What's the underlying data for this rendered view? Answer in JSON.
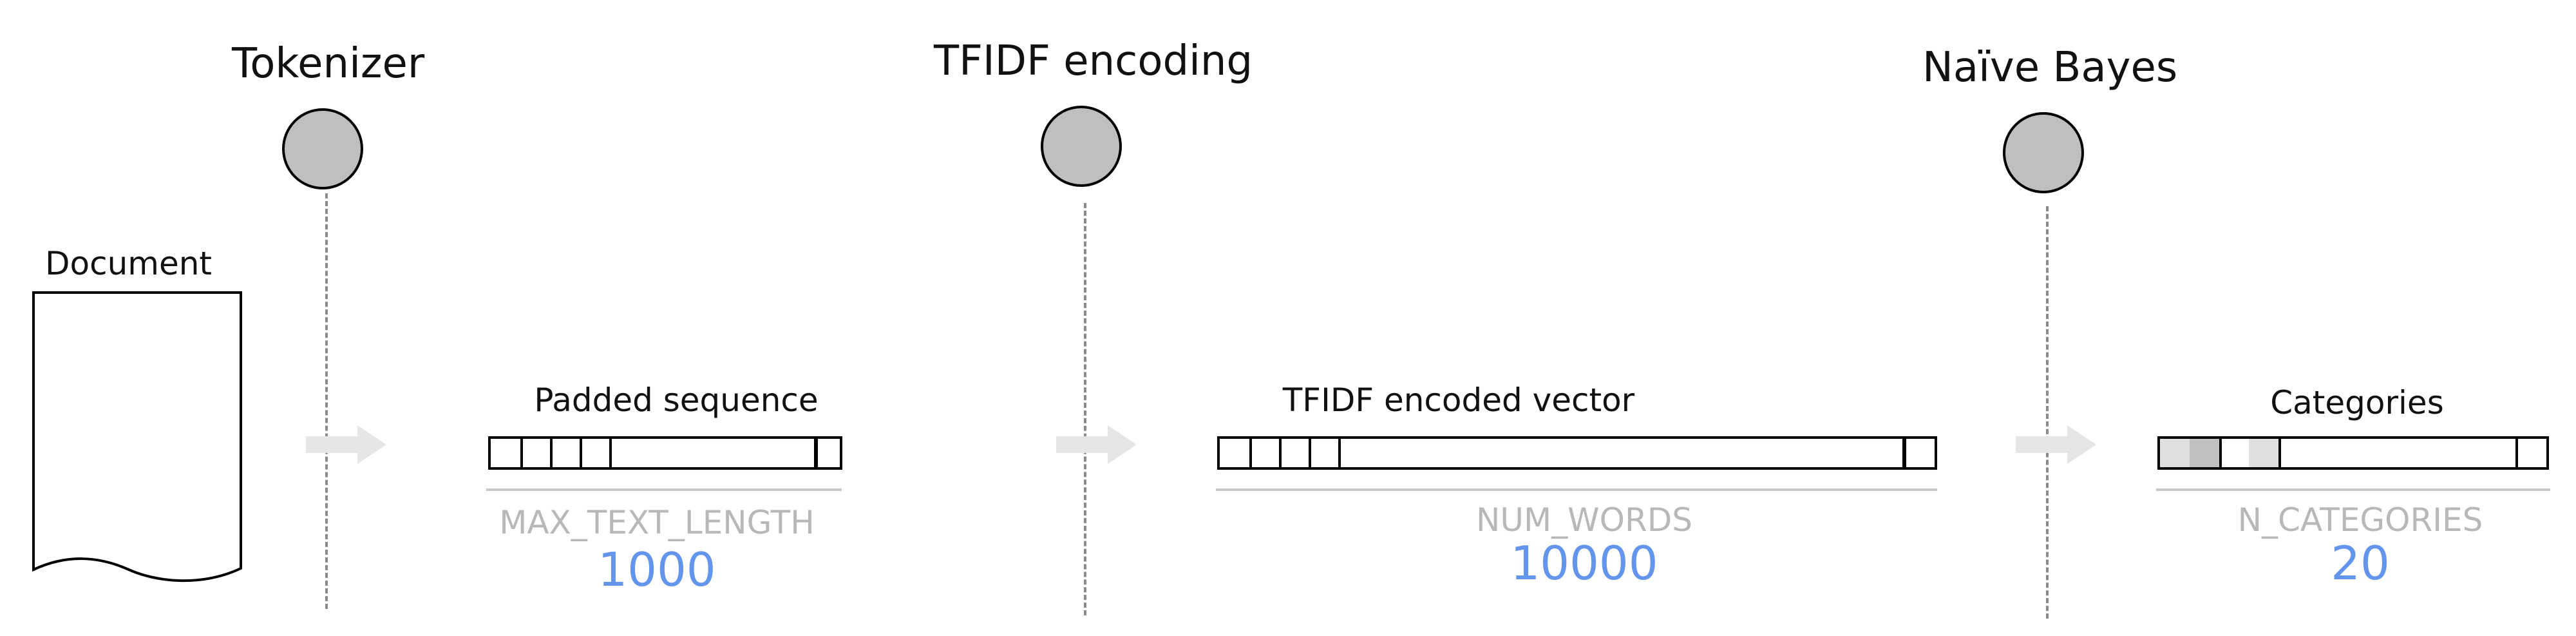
{
  "stages": {
    "tokenizer": "Tokenizer",
    "tfidf": "TFIDF encoding",
    "bayes": "Naïve Bayes"
  },
  "document": {
    "label": "Document"
  },
  "padded": {
    "label": "Padded sequence",
    "dim_name": "MAX_TEXT_LENGTH",
    "dim_value": "1000"
  },
  "tfidf_vec": {
    "label": "TFIDF encoded vector",
    "dim_name": "NUM_WORDS",
    "dim_value": "10000"
  },
  "categories": {
    "label": "Categories",
    "dim_name": "N_CATEGORIES",
    "dim_value": "20"
  },
  "colors": {
    "node_fill": "#bfbfbf",
    "dim_text": "#b8b8b8",
    "number_text": "#6495ed",
    "arrow": "#e6e6e6",
    "cat_light": "#e0e0e0",
    "cat_dark": "#c0c0c0"
  }
}
